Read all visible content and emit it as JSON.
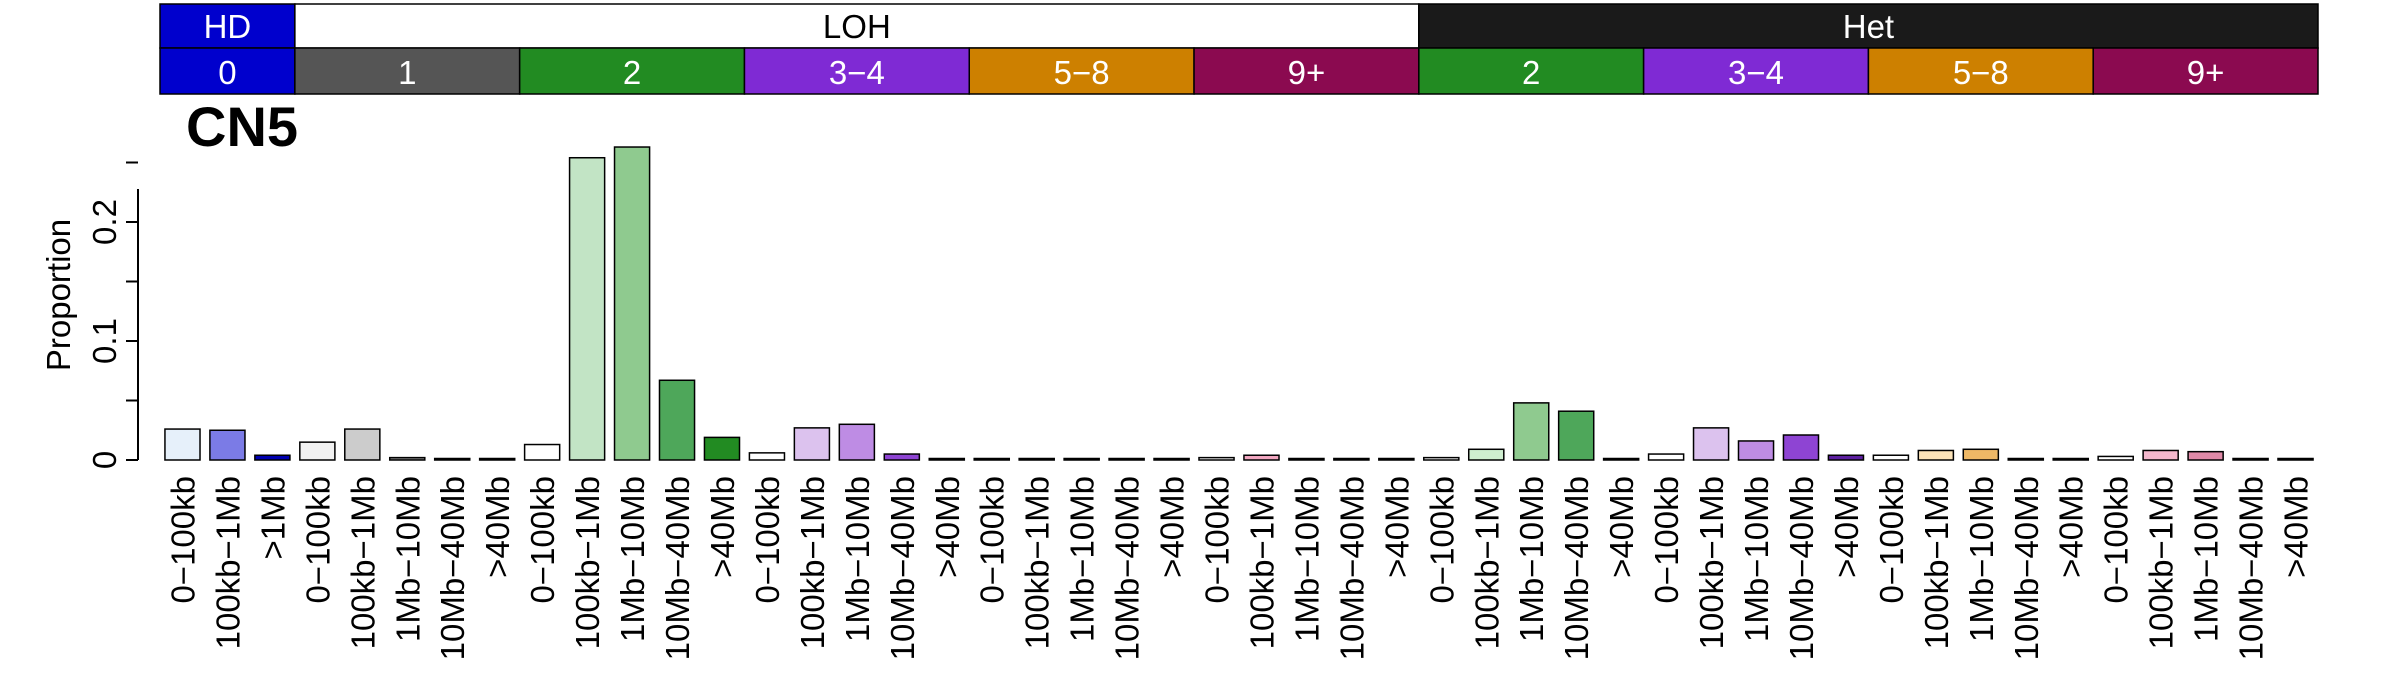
{
  "chart_data": {
    "type": "bar",
    "title": "CN5",
    "ylabel": "Proportion",
    "ylim": [
      0,
      0.25
    ],
    "yticks": [
      {
        "value": 0,
        "label": "0"
      },
      {
        "value": 0.1,
        "label": "0.1"
      },
      {
        "value": 0.2,
        "label": "0.2"
      }
    ],
    "groups_top": [
      {
        "label": "HD",
        "color": "#0000CD",
        "text_color": "#ffffff",
        "from": 0,
        "to": 3
      },
      {
        "label": "LOH",
        "color": "#ffffff",
        "text_color": "#000000",
        "from": 3,
        "to": 28
      },
      {
        "label": "Het",
        "color": "#1A1A1A",
        "text_color": "#ffffff",
        "from": 28,
        "to": 48
      }
    ],
    "groups_cn": [
      {
        "label": "0",
        "color": "#0000CD",
        "from": 0,
        "to": 3
      },
      {
        "label": "1",
        "color": "#555555",
        "from": 3,
        "to": 8
      },
      {
        "label": "2",
        "color": "#228B22",
        "from": 8,
        "to": 13
      },
      {
        "label": "3−4",
        "color": "#7F2AD4",
        "from": 13,
        "to": 18
      },
      {
        "label": "5−8",
        "color": "#CD8000",
        "from": 18,
        "to": 23
      },
      {
        "label": "9+",
        "color": "#8B0A50",
        "from": 23,
        "to": 28
      },
      {
        "label": "2",
        "color": "#228B22",
        "from": 28,
        "to": 33
      },
      {
        "label": "3−4",
        "color": "#7F2AD4",
        "from": 33,
        "to": 38
      },
      {
        "label": "5−8",
        "color": "#CD8000",
        "from": 38,
        "to": 43
      },
      {
        "label": "9+",
        "color": "#8B0A50",
        "from": 43,
        "to": 48
      }
    ],
    "categories": [
      "0−100kb",
      "100kb−1Mb",
      ">1Mb",
      "0−100kb",
      "100kb−1Mb",
      "1Mb−10Mb",
      "10Mb−40Mb",
      ">40Mb",
      "0−100kb",
      "100kb−1Mb",
      "1Mb−10Mb",
      "10Mb−40Mb",
      ">40Mb",
      "0−100kb",
      "100kb−1Mb",
      "1Mb−10Mb",
      "10Mb−40Mb",
      ">40Mb",
      "0−100kb",
      "100kb−1Mb",
      "1Mb−10Mb",
      "10Mb−40Mb",
      ">40Mb",
      "0−100kb",
      "100kb−1Mb",
      "1Mb−10Mb",
      "10Mb−40Mb",
      ">40Mb",
      "0−100kb",
      "100kb−1Mb",
      "1Mb−10Mb",
      "10Mb−40Mb",
      ">40Mb",
      "0−100kb",
      "100kb−1Mb",
      "1Mb−10Mb",
      "10Mb−40Mb",
      ">40Mb",
      "0−100kb",
      "100kb−1Mb",
      "1Mb−10Mb",
      "10Mb−40Mb",
      ">40Mb",
      "0−100kb",
      "100kb−1Mb",
      "1Mb−10Mb",
      "10Mb−40Mb",
      ">40Mb"
    ],
    "values": [
      0.026,
      0.025,
      0.004,
      0.015,
      0.026,
      0.002,
      0.001,
      0.0005,
      0.013,
      0.254,
      0.263,
      0.067,
      0.019,
      0.006,
      0.027,
      0.03,
      0.005,
      0.001,
      0.001,
      0.001,
      0.0008,
      0.0005,
      0.0005,
      0.002,
      0.004,
      0.001,
      0.0008,
      0.0005,
      0.002,
      0.009,
      0.048,
      0.041,
      0.001,
      0.005,
      0.027,
      0.016,
      0.021,
      0.004,
      0.004,
      0.008,
      0.009,
      0.001,
      0.001,
      0.003,
      0.008,
      0.007,
      0.001,
      0.0005
    ],
    "bar_colors": [
      "#E6F0FA",
      "#7B7BE6",
      "#0000B0",
      "#F2F2F2",
      "#CCCCCC",
      "#8C8C8C",
      "#555555",
      "#333333",
      "#FFFFFF",
      "#C2E4C5",
      "#8FCA8F",
      "#4EA75A",
      "#228B22",
      "#FFFFFF",
      "#DCC2EE",
      "#BE8CE4",
      "#8E44D3",
      "#5C1FA0",
      "#FFFFFF",
      "#FFFFFF",
      "#FFFFFF",
      "#FFFFFF",
      "#FFFFFF",
      "#FFFFFF",
      "#F2A7C1",
      "#C26890",
      "#8B0A50",
      "#5A0634",
      "#FFFFFF",
      "#CFEFD0",
      "#8FCA8F",
      "#4EA75A",
      "#228B22",
      "#FFFFFF",
      "#DCC2EE",
      "#BE8CE4",
      "#8E44D3",
      "#5C1FA0",
      "#FFFFFF",
      "#FCE3B8",
      "#EEB866",
      "#CD8000",
      "#7A4C00",
      "#FFFFFF",
      "#F4B7CC",
      "#E08AA8",
      "#8B0A50",
      "#5A0634"
    ]
  }
}
